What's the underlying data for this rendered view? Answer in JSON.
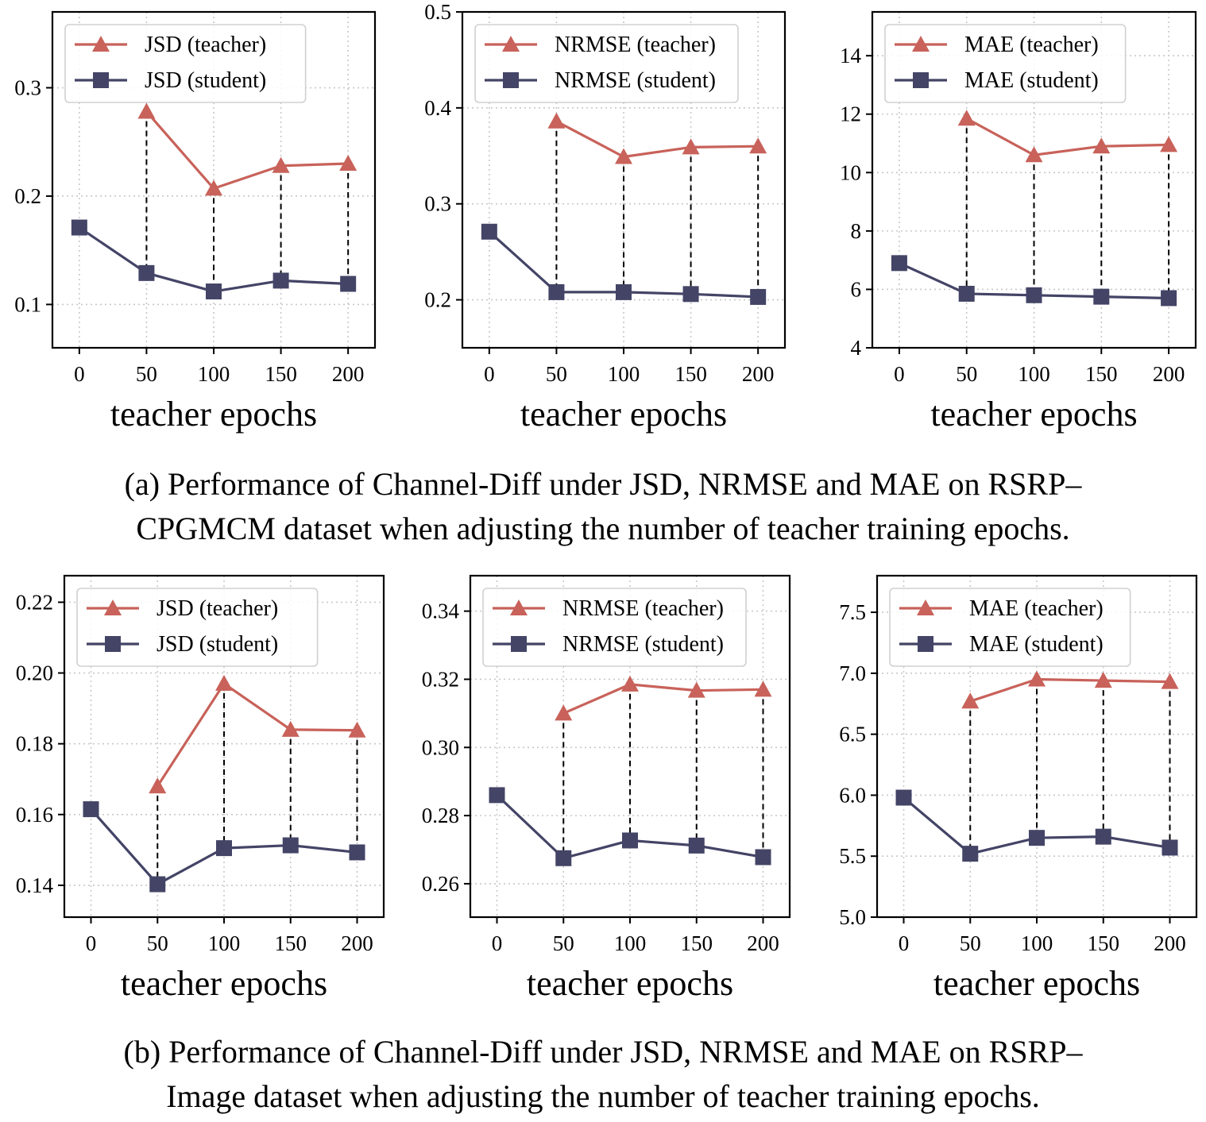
{
  "colors": {
    "teacher": "#c8625a",
    "student": "#434466",
    "grid": "#c8c8c8",
    "axis": "#000000"
  },
  "caption_a": {
    "line1": "(a) Performance of Channel-Diff under JSD, NRMSE and MAE on RSRP–",
    "line2": "CPGMCM dataset when adjusting the number of teacher training epochs."
  },
  "caption_b": {
    "line1": "(b) Performance of Channel-Diff under JSD, NRMSE and MAE on RSRP–",
    "line2": "Image dataset when adjusting the number of teacher training epochs."
  },
  "chart_data": [
    {
      "type": "line",
      "panel": "a-jsd",
      "xlabel": "teacher epochs",
      "ylabel": "",
      "x": [
        0,
        50,
        100,
        150,
        200
      ],
      "xlim": [
        -20,
        220
      ],
      "ylim": [
        0.06,
        0.37
      ],
      "yticks": [
        0.1,
        0.2,
        0.3
      ],
      "ytick_labels": [
        "0.1",
        "0.2",
        "0.3"
      ],
      "xtick_labels": [
        "0",
        "50",
        "100",
        "150",
        "200"
      ],
      "legend_position": "top-left",
      "grid": true,
      "series": [
        {
          "name": "JSD (teacher)",
          "marker": "triangle",
          "x": [
            50,
            100,
            150,
            200
          ],
          "values": [
            0.278,
            0.207,
            0.228,
            0.23
          ]
        },
        {
          "name": "JSD (student)",
          "marker": "square",
          "x": [
            0,
            50,
            100,
            150,
            200
          ],
          "values": [
            0.171,
            0.129,
            0.112,
            0.122,
            0.119
          ]
        }
      ]
    },
    {
      "type": "line",
      "panel": "a-nrmse",
      "xlabel": "teacher epochs",
      "ylabel": "",
      "x": [
        0,
        50,
        100,
        150,
        200
      ],
      "xlim": [
        -20,
        220
      ],
      "ylim": [
        0.15,
        0.5
      ],
      "yticks": [
        0.2,
        0.3,
        0.4,
        0.5
      ],
      "ytick_labels": [
        "0.2",
        "0.3",
        "0.4",
        "0.5"
      ],
      "xtick_labels": [
        "0",
        "50",
        "100",
        "150",
        "200"
      ],
      "legend_position": "top-left",
      "grid": true,
      "series": [
        {
          "name": "NRMSE (teacher)",
          "marker": "triangle",
          "x": [
            50,
            100,
            150,
            200
          ],
          "values": [
            0.386,
            0.349,
            0.359,
            0.36
          ]
        },
        {
          "name": "NRMSE (student)",
          "marker": "square",
          "x": [
            0,
            50,
            100,
            150,
            200
          ],
          "values": [
            0.271,
            0.208,
            0.208,
            0.206,
            0.203
          ]
        }
      ]
    },
    {
      "type": "line",
      "panel": "a-mae",
      "xlabel": "teacher epochs",
      "ylabel": "",
      "x": [
        0,
        50,
        100,
        150,
        200
      ],
      "xlim": [
        -20,
        220
      ],
      "ylim": [
        4,
        15.5
      ],
      "yticks": [
        4,
        6,
        8,
        10,
        12,
        14
      ],
      "ytick_labels": [
        "4",
        "6",
        "8",
        "10",
        "12",
        "14"
      ],
      "xtick_labels": [
        "0",
        "50",
        "100",
        "150",
        "200"
      ],
      "legend_position": "top-left",
      "grid": true,
      "series": [
        {
          "name": "MAE (teacher)",
          "marker": "triangle",
          "x": [
            50,
            100,
            150,
            200
          ],
          "values": [
            11.85,
            10.6,
            10.9,
            10.95
          ]
        },
        {
          "name": "MAE (student)",
          "marker": "square",
          "x": [
            0,
            50,
            100,
            150,
            200
          ],
          "values": [
            6.9,
            5.85,
            5.8,
            5.75,
            5.7
          ]
        }
      ]
    },
    {
      "type": "line",
      "panel": "b-jsd",
      "xlabel": "teacher epochs",
      "ylabel": "",
      "x": [
        0,
        50,
        100,
        150,
        200
      ],
      "xlim": [
        -20,
        220
      ],
      "ylim": [
        0.131,
        0.2275
      ],
      "yticks": [
        0.14,
        0.16,
        0.18,
        0.2,
        0.22
      ],
      "ytick_labels": [
        "0.14",
        "0.16",
        "0.18",
        "0.20",
        "0.22"
      ],
      "xtick_labels": [
        "0",
        "50",
        "100",
        "150",
        "200"
      ],
      "legend_position": "top-left",
      "grid": true,
      "series": [
        {
          "name": "JSD (teacher)",
          "marker": "triangle",
          "x": [
            50,
            100,
            150,
            200
          ],
          "values": [
            0.168,
            0.197,
            0.184,
            0.1838
          ]
        },
        {
          "name": "JSD (student)",
          "marker": "square",
          "x": [
            0,
            50,
            100,
            150,
            200
          ],
          "values": [
            0.1615,
            0.1403,
            0.1505,
            0.1513,
            0.1493
          ]
        }
      ]
    },
    {
      "type": "line",
      "panel": "b-nrmse",
      "xlabel": "teacher epochs",
      "ylabel": "",
      "x": [
        0,
        50,
        100,
        150,
        200
      ],
      "xlim": [
        -20,
        220
      ],
      "ylim": [
        0.2502,
        0.3504
      ],
      "yticks": [
        0.26,
        0.28,
        0.3,
        0.32,
        0.34
      ],
      "ytick_labels": [
        "0.26",
        "0.28",
        "0.30",
        "0.32",
        "0.34"
      ],
      "xtick_labels": [
        "0",
        "50",
        "100",
        "150",
        "200"
      ],
      "legend_position": "top-left",
      "grid": true,
      "series": [
        {
          "name": "NRMSE (teacher)",
          "marker": "triangle",
          "x": [
            50,
            100,
            150,
            200
          ],
          "values": [
            0.31,
            0.3185,
            0.3167,
            0.317
          ]
        },
        {
          "name": "NRMSE (student)",
          "marker": "square",
          "x": [
            0,
            50,
            100,
            150,
            200
          ],
          "values": [
            0.286,
            0.2675,
            0.2727,
            0.2712,
            0.2678
          ]
        }
      ]
    },
    {
      "type": "line",
      "panel": "b-mae",
      "xlabel": "teacher epochs",
      "ylabel": "",
      "x": [
        0,
        50,
        100,
        150,
        200
      ],
      "xlim": [
        -20,
        220
      ],
      "ylim": [
        5.0,
        7.8
      ],
      "yticks": [
        5.0,
        5.5,
        6.0,
        6.5,
        7.0,
        7.5
      ],
      "ytick_labels": [
        "5.0",
        "5.5",
        "6.0",
        "6.5",
        "7.0",
        "7.5"
      ],
      "xtick_labels": [
        "0",
        "50",
        "100",
        "150",
        "200"
      ],
      "legend_position": "top-left",
      "grid": true,
      "series": [
        {
          "name": "MAE (teacher)",
          "marker": "triangle",
          "x": [
            50,
            100,
            150,
            200
          ],
          "values": [
            6.77,
            6.95,
            6.94,
            6.93
          ]
        },
        {
          "name": "MAE (student)",
          "marker": "square",
          "x": [
            0,
            50,
            100,
            150,
            200
          ],
          "values": [
            5.98,
            5.52,
            5.65,
            5.66,
            5.57
          ]
        }
      ]
    }
  ]
}
